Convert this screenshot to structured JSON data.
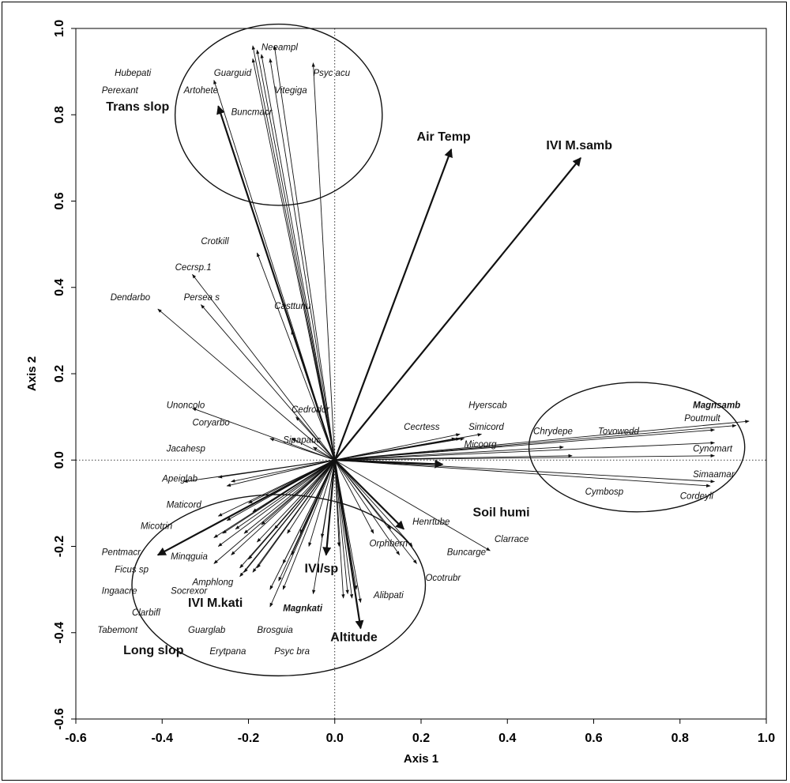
{
  "chart_data": {
    "type": "scatter",
    "subtype": "ordination-biplot",
    "title": "",
    "xlabel": "Axis 1",
    "ylabel": "Axis 2",
    "xlim": [
      -0.6,
      1.0
    ],
    "ylim": [
      -0.6,
      1.0
    ],
    "x_ticks": [
      "-0.6",
      "-0.4",
      "-0.2",
      "0.0",
      "0.2",
      "0.4",
      "0.6",
      "0.8",
      "1.0"
    ],
    "y_ticks": [
      "-0.6",
      "-0.4",
      "-0.2",
      "0.0",
      "0.2",
      "0.4",
      "0.6",
      "0.8",
      "1.0"
    ],
    "x_tick_values": [
      -0.6,
      -0.4,
      -0.2,
      0.0,
      0.2,
      0.4,
      0.6,
      0.8,
      1.0
    ],
    "y_tick_values": [
      -0.6,
      -0.4,
      -0.2,
      0.0,
      0.2,
      0.4,
      0.6,
      0.8,
      1.0
    ],
    "grid": false,
    "reference_lines": "dotted at x=0 and y=0",
    "environmental_vectors": [
      {
        "name": "Air Temp",
        "x": 0.27,
        "y": 0.72
      },
      {
        "name": "IVI M.samb",
        "x": 0.57,
        "y": 0.7
      },
      {
        "name": "Trans slop",
        "x": -0.27,
        "y": 0.82
      },
      {
        "name": "Soil humi",
        "x": 0.25,
        "y": -0.01
      },
      {
        "name": "Altitude",
        "x": 0.06,
        "y": -0.39
      },
      {
        "name": "IVI/sp",
        "x": -0.02,
        "y": -0.22
      },
      {
        "name": "IVI M.kati",
        "x": -0.41,
        "y": -0.22
      },
      {
        "name": "Long slop",
        "x": 0.16,
        "y": -0.16
      }
    ],
    "species": [
      {
        "name": "Hubepati",
        "x": -0.18,
        "y": 0.95
      },
      {
        "name": "Perexant",
        "x": -0.19,
        "y": 0.93
      },
      {
        "name": "Guarguid",
        "x": -0.19,
        "y": 0.96
      },
      {
        "name": "Neeampl",
        "x": -0.14,
        "y": 0.96
      },
      {
        "name": "Psyc acu",
        "x": -0.05,
        "y": 0.92
      },
      {
        "name": "Artohete",
        "x": -0.28,
        "y": 0.88
      },
      {
        "name": "Vitegiga",
        "x": -0.17,
        "y": 0.94
      },
      {
        "name": "Buncmacr",
        "x": -0.15,
        "y": 0.93
      },
      {
        "name": "Crotkill",
        "x": -0.18,
        "y": 0.48
      },
      {
        "name": "Cecrsp.1",
        "x": -0.33,
        "y": 0.43
      },
      {
        "name": "Persea s",
        "x": -0.31,
        "y": 0.36
      },
      {
        "name": "Dendarbo",
        "x": -0.41,
        "y": 0.35
      },
      {
        "name": "Casttunu",
        "x": -0.1,
        "y": 0.3
      },
      {
        "name": "Unoncolo",
        "x": -0.33,
        "y": 0.12
      },
      {
        "name": "Coryarbo",
        "x": -0.1,
        "y": 0.05
      },
      {
        "name": "Cedrodor",
        "x": -0.09,
        "y": 0.1
      },
      {
        "name": "Sipapauc",
        "x": -0.15,
        "y": 0.05
      },
      {
        "name": "Jacahesp",
        "x": -0.35,
        "y": -0.05
      },
      {
        "name": "Apeiglab",
        "x": -0.25,
        "y": -0.06
      },
      {
        "name": "Maticord",
        "x": -0.25,
        "y": -0.14
      },
      {
        "name": "Micotrin",
        "x": -0.27,
        "y": -0.13
      },
      {
        "name": "Pentmacr",
        "x": -0.28,
        "y": -0.18
      },
      {
        "name": "Minqguia",
        "x": -0.27,
        "y": -0.2
      },
      {
        "name": "Ficus sp",
        "x": -0.28,
        "y": -0.24
      },
      {
        "name": "Amphlong",
        "x": -0.22,
        "y": -0.27
      },
      {
        "name": "Socrexor",
        "x": -0.2,
        "y": -0.23
      },
      {
        "name": "Ingaacre",
        "x": -0.24,
        "y": -0.22
      },
      {
        "name": "Clarbifl",
        "x": -0.22,
        "y": -0.25
      },
      {
        "name": "Tabemont",
        "x": -0.21,
        "y": -0.26
      },
      {
        "name": "Guarglab",
        "x": -0.15,
        "y": -0.34
      },
      {
        "name": "Erytpana",
        "x": -0.12,
        "y": -0.3
      },
      {
        "name": "Brosguia",
        "x": -0.15,
        "y": -0.3
      },
      {
        "name": "Psyc bra",
        "x": -0.13,
        "y": -0.28
      },
      {
        "name": "Magnkati",
        "x": -0.05,
        "y": -0.31
      },
      {
        "name": "Alibpati",
        "x": 0.02,
        "y": -0.32
      },
      {
        "name": "Orphbern",
        "x": 0.06,
        "y": -0.33
      },
      {
        "name": "Henrtube",
        "x": 0.18,
        "y": -0.2
      },
      {
        "name": "Buncarge",
        "x": 0.19,
        "y": -0.24
      },
      {
        "name": "Ocotrubr",
        "x": 0.15,
        "y": -0.22
      },
      {
        "name": "Clarrace",
        "x": 0.36,
        "y": -0.21
      },
      {
        "name": "Cecrtess",
        "x": 0.3,
        "y": 0.05
      },
      {
        "name": "Hyerscab",
        "x": 0.34,
        "y": 0.06
      },
      {
        "name": "Simicord",
        "x": 0.29,
        "y": 0.06
      },
      {
        "name": "Micoorg",
        "x": 0.29,
        "y": 0.05
      },
      {
        "name": "Chrydepe",
        "x": 0.53,
        "y": 0.03
      },
      {
        "name": "Tovowedd",
        "x": 0.88,
        "y": 0.07
      },
      {
        "name": "Magnsamb",
        "x": 0.96,
        "y": 0.09
      },
      {
        "name": "Poutmult",
        "x": 0.93,
        "y": 0.08
      },
      {
        "name": "Cynomart",
        "x": 0.88,
        "y": 0.04
      },
      {
        "name": "Cymbosp",
        "x": 0.88,
        "y": 0.01
      },
      {
        "name": "Simaamar",
        "x": 0.88,
        "y": -0.05
      },
      {
        "name": "Cordeyli",
        "x": 0.87,
        "y": -0.06
      }
    ],
    "extra_vectors": [
      {
        "x": -0.27,
        "y": -0.04
      },
      {
        "x": -0.24,
        "y": -0.05
      },
      {
        "x": -0.2,
        "y": -0.1
      },
      {
        "x": -0.19,
        "y": -0.12
      },
      {
        "x": -0.23,
        "y": -0.16
      },
      {
        "x": -0.26,
        "y": -0.17
      },
      {
        "x": -0.21,
        "y": -0.17
      },
      {
        "x": -0.18,
        "y": -0.19
      },
      {
        "x": -0.17,
        "y": -0.15
      },
      {
        "x": -0.14,
        "y": -0.16
      },
      {
        "x": -0.11,
        "y": -0.17
      },
      {
        "x": -0.08,
        "y": -0.17
      },
      {
        "x": -0.06,
        "y": -0.2
      },
      {
        "x": -0.19,
        "y": -0.26
      },
      {
        "x": -0.18,
        "y": -0.25
      },
      {
        "x": -0.12,
        "y": -0.24
      },
      {
        "x": -0.1,
        "y": -0.22
      },
      {
        "x": -0.03,
        "y": -0.18
      },
      {
        "x": 0.01,
        "y": -0.2
      },
      {
        "x": 0.03,
        "y": -0.31
      },
      {
        "x": 0.04,
        "y": -0.32
      },
      {
        "x": 0.05,
        "y": -0.3
      },
      {
        "x": 0.09,
        "y": -0.17
      },
      {
        "x": 0.13,
        "y": -0.16
      },
      {
        "x": 0.55,
        "y": 0.01
      },
      {
        "x": 0.28,
        "y": 0.05
      },
      {
        "x": -0.05,
        "y": 0.03
      }
    ],
    "groups": [
      {
        "label": "Trans slop",
        "cx": -0.13,
        "cy": 0.8,
        "rx": 0.24,
        "ry": 0.21
      },
      {
        "label": "Soil humi",
        "cx": 0.7,
        "cy": 0.03,
        "rx": 0.25,
        "ry": 0.15
      },
      {
        "label": "Long slop",
        "cx": -0.13,
        "cy": -0.29,
        "rx": 0.34,
        "ry": 0.21
      }
    ],
    "species_labels": [
      {
        "name": "Hubepati",
        "x": -0.51,
        "y": 0.89
      },
      {
        "name": "Perexant",
        "x": -0.54,
        "y": 0.85
      },
      {
        "name": "Guarguid",
        "x": -0.28,
        "y": 0.89
      },
      {
        "name": "Neeampl",
        "x": -0.17,
        "y": 0.95
      },
      {
        "name": "Psyc acu",
        "x": -0.05,
        "y": 0.89
      },
      {
        "name": "Artohete",
        "x": -0.35,
        "y": 0.85
      },
      {
        "name": "Vitegiga",
        "x": -0.14,
        "y": 0.85
      },
      {
        "name": "Buncmacr",
        "x": -0.24,
        "y": 0.8
      },
      {
        "name": "Crotkill",
        "x": -0.31,
        "y": 0.5
      },
      {
        "name": "Cecrsp.1",
        "x": -0.37,
        "y": 0.44
      },
      {
        "name": "Persea s",
        "x": -0.35,
        "y": 0.37
      },
      {
        "name": "Dendarbo",
        "x": -0.52,
        "y": 0.37
      },
      {
        "name": "Casttunu",
        "x": -0.14,
        "y": 0.35
      },
      {
        "name": "Unoncolo",
        "x": -0.39,
        "y": 0.12
      },
      {
        "name": "Coryarbo",
        "x": -0.33,
        "y": 0.08
      },
      {
        "name": "Cedrodor",
        "x": -0.1,
        "y": 0.11
      },
      {
        "name": "Sipapauc",
        "x": -0.12,
        "y": 0.04
      },
      {
        "name": "Jacahesp",
        "x": -0.39,
        "y": 0.02
      },
      {
        "name": "Apeiglab",
        "x": -0.4,
        "y": -0.05
      },
      {
        "name": "Maticord",
        "x": -0.39,
        "y": -0.11
      },
      {
        "name": "Micotrin",
        "x": -0.45,
        "y": -0.16
      },
      {
        "name": "Pentmacr",
        "x": -0.54,
        "y": -0.22
      },
      {
        "name": "Minqguia",
        "x": -0.38,
        "y": -0.23
      },
      {
        "name": "Ficus sp",
        "x": -0.51,
        "y": -0.26
      },
      {
        "name": "Amphlong",
        "x": -0.33,
        "y": -0.29
      },
      {
        "name": "Socrexor",
        "x": -0.38,
        "y": -0.31
      },
      {
        "name": "Ingaacre",
        "x": -0.54,
        "y": -0.31
      },
      {
        "name": "Clarbifl",
        "x": -0.47,
        "y": -0.36
      },
      {
        "name": "Tabemont",
        "x": -0.55,
        "y": -0.4
      },
      {
        "name": "Guarglab",
        "x": -0.34,
        "y": -0.4
      },
      {
        "name": "Erytpana",
        "x": -0.29,
        "y": -0.45
      },
      {
        "name": "Brosguia",
        "x": -0.18,
        "y": -0.4
      },
      {
        "name": "Psyc bra",
        "x": -0.14,
        "y": -0.45
      },
      {
        "name": "Magnkati",
        "x": -0.12,
        "y": -0.35
      },
      {
        "name": "Alibpati",
        "x": 0.09,
        "y": -0.32
      },
      {
        "name": "Orphbern",
        "x": 0.08,
        "y": -0.2
      },
      {
        "name": "Henrtube",
        "x": 0.18,
        "y": -0.15
      },
      {
        "name": "Buncarge",
        "x": 0.26,
        "y": -0.22
      },
      {
        "name": "Ocotrubr",
        "x": 0.21,
        "y": -0.28
      },
      {
        "name": "Clarrace",
        "x": 0.37,
        "y": -0.19
      },
      {
        "name": "Cecrtess",
        "x": 0.16,
        "y": 0.07
      },
      {
        "name": "Hyerscab",
        "x": 0.31,
        "y": 0.12
      },
      {
        "name": "Simicord",
        "x": 0.31,
        "y": 0.07
      },
      {
        "name": "Micoorg",
        "x": 0.3,
        "y": 0.03
      },
      {
        "name": "Chrydepe",
        "x": 0.46,
        "y": 0.06
      },
      {
        "name": "Tovowedd",
        "x": 0.61,
        "y": 0.06
      },
      {
        "name": "Magnsamb",
        "x": 0.83,
        "y": 0.12
      },
      {
        "name": "Poutmult",
        "x": 0.81,
        "y": 0.09
      },
      {
        "name": "Cynomart",
        "x": 0.83,
        "y": 0.02
      },
      {
        "name": "Cymbosp",
        "x": 0.58,
        "y": -0.08
      },
      {
        "name": "Simaamar",
        "x": 0.83,
        "y": -0.04
      },
      {
        "name": "Cordeyli",
        "x": 0.8,
        "y": -0.09
      }
    ]
  }
}
